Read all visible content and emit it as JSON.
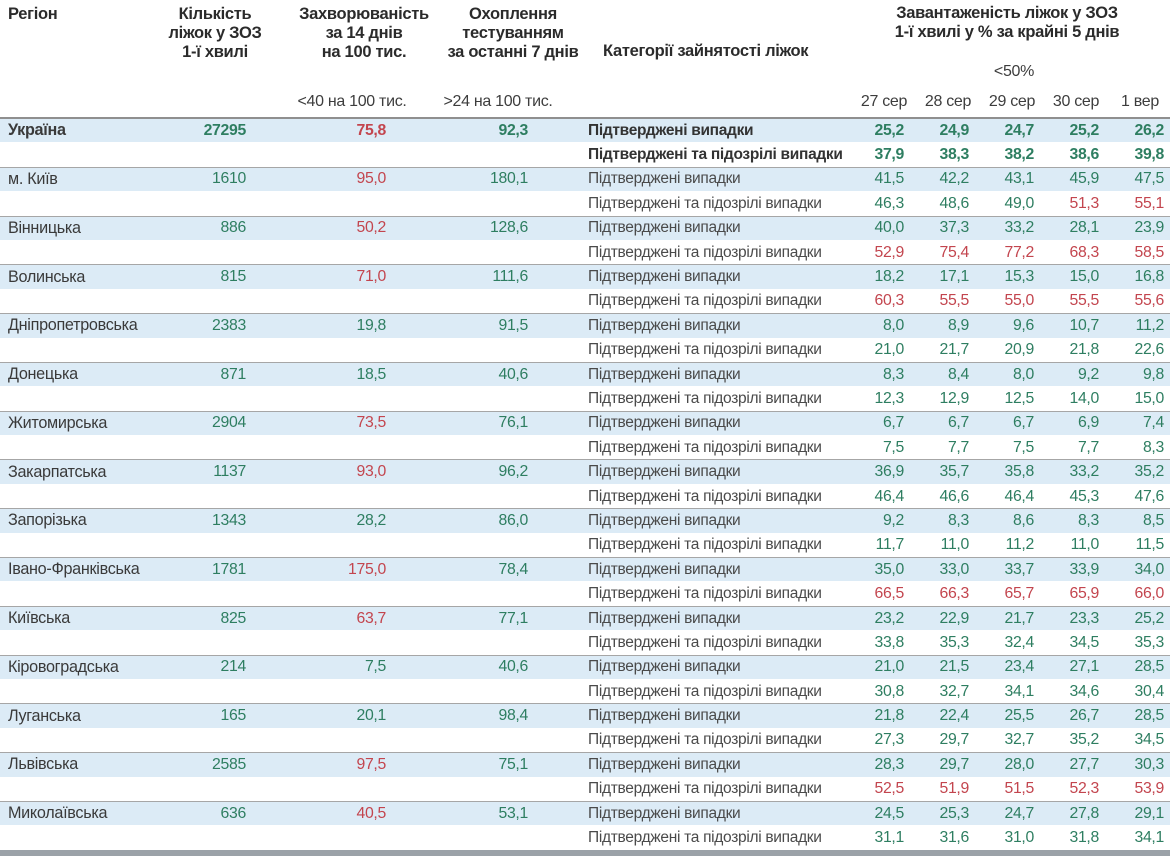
{
  "colors": {
    "green": "#2e7e61",
    "red": "#c3454e",
    "band": "#dcebf6",
    "separator": "#a6a6a6",
    "header_text": "#2b2b2b"
  },
  "chart_data": {
    "type": "table",
    "columns": {
      "region": "Регіон",
      "beds_lines": [
        "Кількість",
        "ліжок у ЗОЗ",
        "1-ї хвилі"
      ],
      "incidence_lines": [
        "Захворюваність",
        "за 14 днів",
        "на 100 тис."
      ],
      "testing_lines": [
        "Охоплення",
        "тестуванням",
        "за останні 7 днів"
      ],
      "category": "Категорії зайнятості ліжок",
      "occupancy_lines": [
        "Завантаженість ліжок у ЗОЗ",
        "1-ї хвилі у % за крайні 5 днів"
      ]
    },
    "thresholds": {
      "incidence": "<40 на 100 тис.",
      "testing": ">24 на 100 тис.",
      "occupancy": "<50%"
    },
    "color_rules": {
      "incidence_red_at": 40,
      "occupancy_red_at": 50
    },
    "dates": [
      "27 сер",
      "28 сер",
      "29 сер",
      "30 сер",
      "1 вер"
    ],
    "category_labels": {
      "confirmed": "Підтверджені випадки",
      "confirmed_suspected": "Підтверджені та підозрілі випадки"
    },
    "regions": [
      {
        "region": "Україна",
        "bold": true,
        "beds": "27295",
        "incidence": "75,8",
        "testing": "92,3",
        "confirmed": [
          "25,2",
          "24,9",
          "24,7",
          "25,2",
          "26,2"
        ],
        "confirmed_suspected": [
          "37,9",
          "38,3",
          "38,2",
          "38,6",
          "39,8"
        ]
      },
      {
        "region": "м. Київ",
        "beds": "1610",
        "incidence": "95,0",
        "testing": "180,1",
        "confirmed": [
          "41,5",
          "42,2",
          "43,1",
          "45,9",
          "47,5"
        ],
        "confirmed_suspected": [
          "46,3",
          "48,6",
          "49,0",
          "51,3",
          "55,1"
        ]
      },
      {
        "region": "Вінницька",
        "beds": "886",
        "incidence": "50,2",
        "testing": "128,6",
        "confirmed": [
          "40,0",
          "37,3",
          "33,2",
          "28,1",
          "23,9"
        ],
        "confirmed_suspected": [
          "52,9",
          "75,4",
          "77,2",
          "68,3",
          "58,5"
        ]
      },
      {
        "region": "Волинська",
        "beds": "815",
        "incidence": "71,0",
        "testing": "111,6",
        "confirmed": [
          "18,2",
          "17,1",
          "15,3",
          "15,0",
          "16,8"
        ],
        "confirmed_suspected": [
          "60,3",
          "55,5",
          "55,0",
          "55,5",
          "55,6"
        ]
      },
      {
        "region": "Дніпропетровська",
        "beds": "2383",
        "incidence": "19,8",
        "testing": "91,5",
        "confirmed": [
          "8,0",
          "8,9",
          "9,6",
          "10,7",
          "11,2"
        ],
        "confirmed_suspected": [
          "21,0",
          "21,7",
          "20,9",
          "21,8",
          "22,6"
        ]
      },
      {
        "region": "Донецька",
        "beds": "871",
        "incidence": "18,5",
        "testing": "40,6",
        "confirmed": [
          "8,3",
          "8,4",
          "8,0",
          "9,2",
          "9,8"
        ],
        "confirmed_suspected": [
          "12,3",
          "12,9",
          "12,5",
          "14,0",
          "15,0"
        ]
      },
      {
        "region": "Житомирська",
        "beds": "2904",
        "incidence": "73,5",
        "testing": "76,1",
        "confirmed": [
          "6,7",
          "6,7",
          "6,7",
          "6,9",
          "7,4"
        ],
        "confirmed_suspected": [
          "7,5",
          "7,7",
          "7,5",
          "7,7",
          "8,3"
        ]
      },
      {
        "region": "Закарпатська",
        "beds": "1137",
        "incidence": "93,0",
        "testing": "96,2",
        "confirmed": [
          "36,9",
          "35,7",
          "35,8",
          "33,2",
          "35,2"
        ],
        "confirmed_suspected": [
          "46,4",
          "46,6",
          "46,4",
          "45,3",
          "47,6"
        ]
      },
      {
        "region": "Запорізька",
        "beds": "1343",
        "incidence": "28,2",
        "testing": "86,0",
        "confirmed": [
          "9,2",
          "8,3",
          "8,6",
          "8,3",
          "8,5"
        ],
        "confirmed_suspected": [
          "11,7",
          "11,0",
          "11,2",
          "11,0",
          "11,5"
        ]
      },
      {
        "region": "Івано-Франківська",
        "beds": "1781",
        "incidence": "175,0",
        "testing": "78,4",
        "confirmed": [
          "35,0",
          "33,0",
          "33,7",
          "33,9",
          "34,0"
        ],
        "confirmed_suspected": [
          "66,5",
          "66,3",
          "65,7",
          "65,9",
          "66,0"
        ]
      },
      {
        "region": "Київська",
        "beds": "825",
        "incidence": "63,7",
        "testing": "77,1",
        "confirmed": [
          "23,2",
          "22,9",
          "21,7",
          "23,3",
          "25,2"
        ],
        "confirmed_suspected": [
          "33,8",
          "35,3",
          "32,4",
          "34,5",
          "35,3"
        ]
      },
      {
        "region": "Кіровоградська",
        "beds": "214",
        "incidence": "7,5",
        "testing": "40,6",
        "confirmed": [
          "21,0",
          "21,5",
          "23,4",
          "27,1",
          "28,5"
        ],
        "confirmed_suspected": [
          "30,8",
          "32,7",
          "34,1",
          "34,6",
          "30,4"
        ]
      },
      {
        "region": "Луганська",
        "beds": "165",
        "incidence": "20,1",
        "testing": "98,4",
        "confirmed": [
          "21,8",
          "22,4",
          "25,5",
          "26,7",
          "28,5"
        ],
        "confirmed_suspected": [
          "27,3",
          "29,7",
          "32,7",
          "35,2",
          "34,5"
        ]
      },
      {
        "region": "Львівська",
        "beds": "2585",
        "incidence": "97,5",
        "testing": "75,1",
        "confirmed": [
          "28,3",
          "29,7",
          "28,0",
          "27,7",
          "30,3"
        ],
        "confirmed_suspected": [
          "52,5",
          "51,9",
          "51,5",
          "52,3",
          "53,9"
        ]
      },
      {
        "region": "Миколаївська",
        "beds": "636",
        "incidence": "40,5",
        "testing": "53,1",
        "confirmed": [
          "24,5",
          "25,3",
          "24,7",
          "27,8",
          "29,1"
        ],
        "confirmed_suspected": [
          "31,1",
          "31,6",
          "31,0",
          "31,8",
          "34,1"
        ]
      }
    ]
  }
}
